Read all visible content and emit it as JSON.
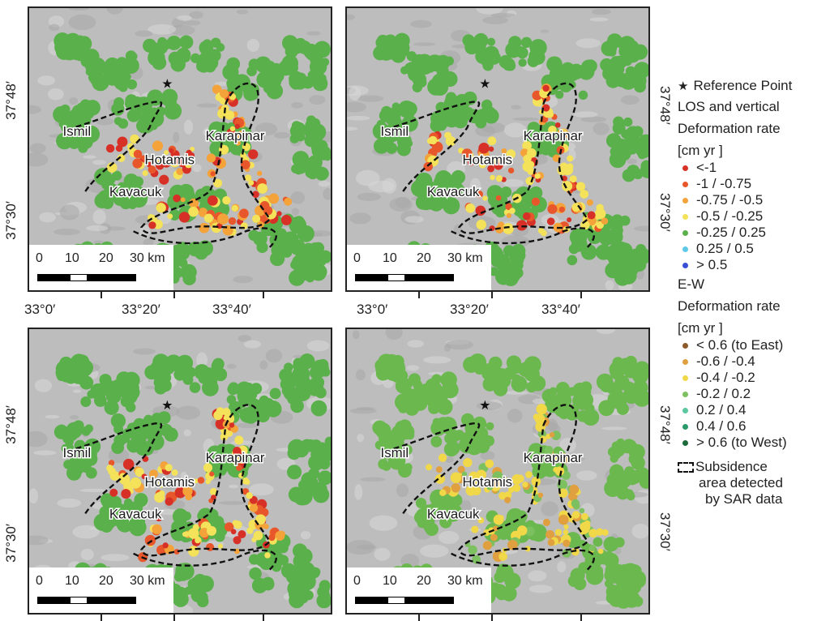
{
  "legend": {
    "reference": "Reference Point",
    "los_title1": "LOS and vertical",
    "los_title2": "Deformation rate",
    "los_units": "[cm yr   ]",
    "los_classes": [
      {
        "label": "<-1",
        "color": "#d73027"
      },
      {
        "label": "-1 / -0.75",
        "color": "#e8572b"
      },
      {
        "label": "-0.75 / -0.5",
        "color": "#f4a23a"
      },
      {
        "label": "-0.5 / -0.25",
        "color": "#f3e25a"
      },
      {
        "label": "-0.25 / 0.25",
        "color": "#5ab04a"
      },
      {
        "label": "0.25 / 0.5",
        "color": "#5fc8e8"
      },
      {
        "label": "> 0.5",
        "color": "#3a4fd8"
      }
    ],
    "ew_title1": "E-W",
    "ew_title2": "Deformation rate",
    "ew_units": "[cm yr   ]",
    "ew_classes": [
      {
        "label": "< 0.6 (to East)",
        "color": "#8c5a2b"
      },
      {
        "label": "-0.6 / -0.4",
        "color": "#e0a040"
      },
      {
        "label": "-0.4 / -0.2",
        "color": "#f0d848"
      },
      {
        "label": "-0.2 / 0.2",
        "color": "#7cc060"
      },
      {
        "label": "0.2 / 0.4",
        "color": "#5cc8a0"
      },
      {
        "label": "0.4 / 0.6",
        "color": "#2a9a6a"
      },
      {
        "label": "> 0.6 (to West)",
        "color": "#1a6a3a"
      }
    ],
    "subsidence1": "Subsidence",
    "subsidence2": "area detected",
    "subsidence3": "by SAR data"
  },
  "places": {
    "ismil": "Ismil",
    "karapinar": "Karapinar",
    "hotamis": "Hotamis",
    "kavacuk": "Kavacuk"
  },
  "coords": {
    "lon0": "33°0′",
    "lon1": "33°20′",
    "lon2": "33°40′",
    "lat48": "37°48′",
    "lat30": "37°30′"
  },
  "scale": {
    "n0": "0",
    "n10": "10",
    "n20": "20",
    "n30": "30 km"
  },
  "colors": {
    "hillshade": "#bdbdbd",
    "stable_green": "#5ab04a",
    "boundary": "#111111"
  }
}
